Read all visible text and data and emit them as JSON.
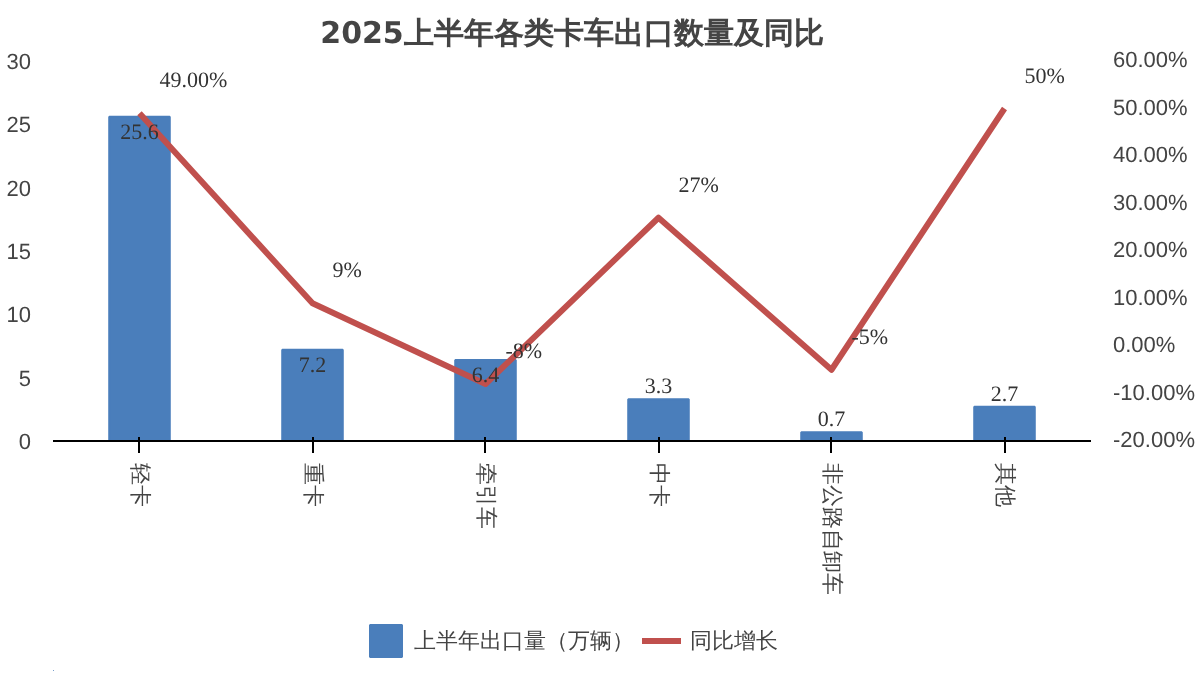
{
  "chart_data": {
    "type": "bar",
    "title": "2025上半年各类卡车出口数量及同比",
    "categories": [
      "轻卡",
      "重卡",
      "牵引车",
      "中卡",
      "非公路自卸车",
      "其他"
    ],
    "series": [
      {
        "name": "上半年出口量（万辆）",
        "color": "#4a7ebb",
        "values": [
          25.6,
          7.2,
          6.4,
          3.3,
          0.7,
          2.7
        ],
        "data_labels": true
      },
      {
        "name": "同比增长",
        "type": "line",
        "axis": "y2",
        "color": "#c0504d",
        "values": [
          49,
          9,
          -8,
          27,
          -5,
          50
        ],
        "value_labels": [
          "49.00%",
          "9%",
          "-8%",
          "27%",
          "-5%",
          "50%"
        ]
      }
    ],
    "ylim": [
      0,
      30
    ],
    "yticks": [
      0,
      5,
      10,
      15,
      20,
      25,
      30
    ],
    "y2lim": [
      -20,
      60
    ],
    "y2ticks": [
      {
        "value": -20,
        "label": "-20.00%"
      },
      {
        "value": -10,
        "label": "-10.00%"
      },
      {
        "value": 0,
        "label": "0.00%"
      },
      {
        "value": 10,
        "label": "10.00%"
      },
      {
        "value": 20,
        "label": "20.00%"
      },
      {
        "value": 30,
        "label": "30.00%"
      },
      {
        "value": 40,
        "label": "40.00%"
      },
      {
        "value": 50,
        "label": "50.00%"
      },
      {
        "value": 60,
        "label": "60.00%"
      }
    ],
    "legend": "bottom",
    "grid": false,
    "marker": "none"
  }
}
